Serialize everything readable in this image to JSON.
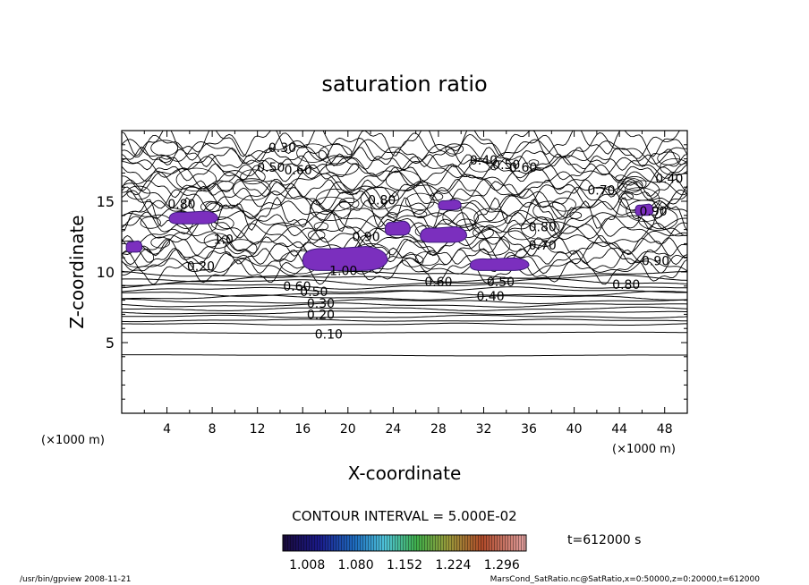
{
  "chart_data": {
    "type": "contour",
    "title": "saturation ratio",
    "xlabel": "X-coordinate",
    "ylabel": "Z-coordinate",
    "x_unit": "(×1000 m)",
    "x_unit_right": "(×1000 m)",
    "xlim": [
      0,
      50
    ],
    "ylim": [
      0,
      20
    ],
    "x_ticks": [
      4,
      8,
      12,
      16,
      20,
      24,
      28,
      32,
      36,
      40,
      44,
      48
    ],
    "y_ticks": [
      5,
      10,
      15
    ],
    "contour_interval_text": "CONTOUR INTERVAL = 5.000E-02",
    "colorbar": {
      "labels": [
        "1.008",
        "1.080",
        "1.152",
        "1.224",
        "1.296"
      ],
      "values": [
        1.008,
        1.08,
        1.152,
        1.224,
        1.296
      ]
    },
    "contour_labels": [
      {
        "text": "0.10",
        "x": 18.3,
        "z": 5.6
      },
      {
        "text": "0.20",
        "x": 17.6,
        "z": 7.0
      },
      {
        "text": "0.30",
        "x": 17.6,
        "z": 7.8
      },
      {
        "text": "0.50",
        "x": 17.0,
        "z": 8.6
      },
      {
        "text": "0.60",
        "x": 15.5,
        "z": 9.0
      },
      {
        "text": "1.00",
        "x": 19.6,
        "z": 10.1
      },
      {
        "text": "0.40",
        "x": 32.6,
        "z": 8.3
      },
      {
        "text": "0.50",
        "x": 33.5,
        "z": 9.3
      },
      {
        "text": "0.60",
        "x": 28.0,
        "z": 9.3
      },
      {
        "text": "0.80",
        "x": 44.6,
        "z": 9.1
      },
      {
        "text": "0.90",
        "x": 47.2,
        "z": 10.8
      },
      {
        "text": "0.70",
        "x": 37.2,
        "z": 11.9
      },
      {
        "text": "0.90",
        "x": 21.6,
        "z": 12.5
      },
      {
        "text": "0.80",
        "x": 37.2,
        "z": 13.2
      },
      {
        "text": "0.70",
        "x": 42.4,
        "z": 15.8
      },
      {
        "text": "0.80",
        "x": 23.0,
        "z": 15.1
      },
      {
        "text": "0.90",
        "x": 47.0,
        "z": 14.3
      },
      {
        "text": "0.40",
        "x": 48.4,
        "z": 16.6
      },
      {
        "text": "0.40",
        "x": 32.0,
        "z": 17.9
      },
      {
        "text": "0.50",
        "x": 34.0,
        "z": 17.6
      },
      {
        "text": "0.60",
        "x": 35.5,
        "z": 17.4
      },
      {
        "text": "0.30",
        "x": 14.2,
        "z": 18.8
      },
      {
        "text": "0.50",
        "x": 13.2,
        "z": 17.4
      },
      {
        "text": "0.60",
        "x": 15.6,
        "z": 17.2
      },
      {
        "text": "0.80",
        "x": 5.3,
        "z": 14.8
      },
      {
        "text": "1.0",
        "x": 9.0,
        "z": 12.3
      },
      {
        "text": "0.20",
        "x": 7.0,
        "z": 10.4
      }
    ],
    "supersaturated_regions": [
      {
        "x": [
          16.0,
          23.5
        ],
        "z": [
          10.1,
          11.8
        ]
      },
      {
        "x": [
          30.8,
          36.0
        ],
        "z": [
          10.1,
          11.0
        ]
      },
      {
        "x": [
          4.2,
          8.5
        ],
        "z": [
          13.4,
          14.3
        ]
      },
      {
        "x": [
          23.3,
          25.5
        ],
        "z": [
          12.6,
          13.6
        ]
      },
      {
        "x": [
          26.4,
          30.5
        ],
        "z": [
          12.1,
          13.2
        ]
      },
      {
        "x": [
          28.0,
          30.0
        ],
        "z": [
          14.4,
          15.1
        ]
      },
      {
        "x": [
          0.4,
          1.8
        ],
        "z": [
          11.4,
          12.2
        ]
      },
      {
        "x": [
          45.4,
          47.0
        ],
        "z": [
          14.0,
          14.8
        ]
      }
    ]
  },
  "time_label": "t=612000 s",
  "footer_left": "/usr/bin/gpview   2008-11-21",
  "footer_right": "MarsCond_SatRatio.nc@SatRatio,x=0:50000,z=0:20000,t=612000",
  "colors": {
    "fill": "#7b2fbe",
    "fill_edge": "#3b1a7a",
    "line": "#000000"
  }
}
